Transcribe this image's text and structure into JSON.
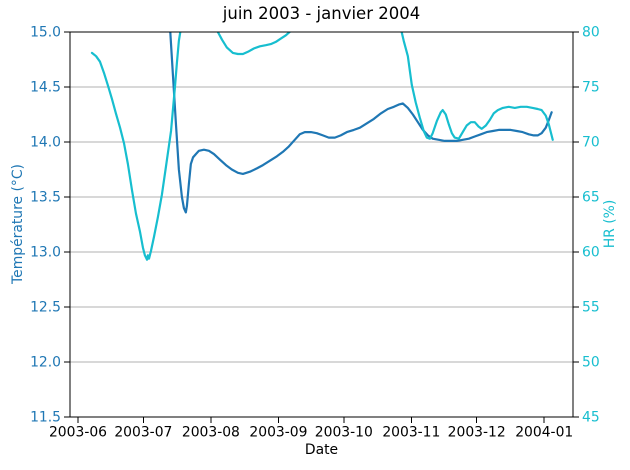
{
  "figure": {
    "background": "#ffffff"
  },
  "chart_data": {
    "type": "line",
    "title": "juin 2003 - janvier 2004",
    "xlabel": "Date",
    "grid": true,
    "grid_color": "#b0b0b0",
    "axis_color": "#000000",
    "x_axis": {
      "unit": "days since 2003-06-01",
      "range_days": [
        -3.67,
        227.2
      ],
      "tick_days": [
        0,
        30,
        61,
        92,
        122,
        153,
        183,
        214
      ],
      "tick_labels": [
        "2003-06",
        "2003-07",
        "2003-08",
        "2003-09",
        "2003-10",
        "2003-11",
        "2003-12",
        "2004-01"
      ]
    },
    "left_axis": {
      "label": "Température (°C)",
      "color": "#1f77b4",
      "range": [
        11.5,
        15.0
      ],
      "ticks": [
        11.5,
        12.0,
        12.5,
        13.0,
        13.5,
        14.0,
        14.5,
        15.0
      ],
      "tick_labels": [
        "11.5",
        "12.0",
        "12.5",
        "13.0",
        "13.5",
        "14.0",
        "14.5",
        "15.0"
      ]
    },
    "right_axis": {
      "label": "HR (%)",
      "color": "#17becf",
      "range": [
        45,
        80
      ],
      "ticks": [
        45,
        50,
        55,
        60,
        65,
        70,
        75,
        80
      ],
      "tick_labels": [
        "45",
        "50",
        "55",
        "60",
        "65",
        "70",
        "75",
        "80"
      ]
    },
    "series": [
      {
        "name": "Température",
        "axis": "left",
        "color": "#1f77b4",
        "line_width": 2.2,
        "note": "values above 15.0 are clipped by the axis (estimated)",
        "points": [
          [
            40.4,
            15.8
          ],
          [
            41.3,
            15.35
          ],
          [
            42.2,
            15.05
          ],
          [
            43.6,
            14.6
          ],
          [
            45.0,
            14.15
          ],
          [
            46.3,
            13.75
          ],
          [
            47.7,
            13.5
          ],
          [
            48.6,
            13.4
          ],
          [
            49.5,
            13.36
          ],
          [
            50.0,
            13.42
          ],
          [
            50.9,
            13.62
          ],
          [
            51.8,
            13.8
          ],
          [
            52.8,
            13.86
          ],
          [
            54.1,
            13.89
          ],
          [
            55.5,
            13.92
          ],
          [
            57.8,
            13.93
          ],
          [
            60.1,
            13.92
          ],
          [
            62.4,
            13.89
          ],
          [
            65.1,
            13.84
          ],
          [
            67.9,
            13.79
          ],
          [
            70.6,
            13.75
          ],
          [
            73.4,
            13.72
          ],
          [
            75.7,
            13.71
          ],
          [
            78.9,
            13.73
          ],
          [
            82.1,
            13.76
          ],
          [
            84.9,
            13.79
          ],
          [
            88.1,
            13.83
          ],
          [
            91.3,
            13.87
          ],
          [
            94.0,
            13.91
          ],
          [
            96.8,
            13.96
          ],
          [
            99.5,
            14.02
          ],
          [
            101.8,
            14.07
          ],
          [
            104.1,
            14.09
          ],
          [
            106.9,
            14.09
          ],
          [
            109.6,
            14.08
          ],
          [
            112.4,
            14.06
          ],
          [
            115.1,
            14.04
          ],
          [
            117.9,
            14.04
          ],
          [
            120.6,
            14.06
          ],
          [
            123.4,
            14.09
          ],
          [
            126.6,
            14.11
          ],
          [
            129.4,
            14.13
          ],
          [
            132.6,
            14.17
          ],
          [
            135.8,
            14.21
          ],
          [
            139.0,
            14.26
          ],
          [
            142.2,
            14.3
          ],
          [
            145.0,
            14.32
          ],
          [
            147.2,
            14.34
          ],
          [
            149.1,
            14.35
          ],
          [
            151.4,
            14.31
          ],
          [
            153.7,
            14.25
          ],
          [
            156.0,
            14.18
          ],
          [
            158.3,
            14.11
          ],
          [
            160.6,
            14.06
          ],
          [
            162.8,
            14.03
          ],
          [
            165.6,
            14.02
          ],
          [
            168.3,
            14.01
          ],
          [
            171.1,
            14.01
          ],
          [
            173.9,
            14.01
          ],
          [
            176.6,
            14.02
          ],
          [
            179.4,
            14.03
          ],
          [
            182.1,
            14.05
          ],
          [
            184.9,
            14.07
          ],
          [
            187.6,
            14.09
          ],
          [
            190.4,
            14.1
          ],
          [
            193.1,
            14.11
          ],
          [
            195.9,
            14.11
          ],
          [
            198.6,
            14.11
          ],
          [
            201.4,
            14.1
          ],
          [
            204.1,
            14.09
          ],
          [
            206.9,
            14.07
          ],
          [
            209.2,
            14.06
          ],
          [
            211.0,
            14.06
          ],
          [
            212.8,
            14.08
          ],
          [
            214.7,
            14.13
          ],
          [
            216.1,
            14.2
          ],
          [
            217.4,
            14.27
          ]
        ]
      },
      {
        "name": "HR",
        "axis": "right",
        "color": "#17becf",
        "line_width": 2.2,
        "note": "values above 80 are clipped by the axis (estimated)",
        "points": [
          [
            6.4,
            78.1
          ],
          [
            8.3,
            77.8
          ],
          [
            10.1,
            77.3
          ],
          [
            11.9,
            76.3
          ],
          [
            13.8,
            75.1
          ],
          [
            15.6,
            73.9
          ],
          [
            17.4,
            72.6
          ],
          [
            19.3,
            71.3
          ],
          [
            21.1,
            69.9
          ],
          [
            22.9,
            68.0
          ],
          [
            24.8,
            65.6
          ],
          [
            26.6,
            63.5
          ],
          [
            28.4,
            61.9
          ],
          [
            29.8,
            60.4
          ],
          [
            30.7,
            59.7
          ],
          [
            31.7,
            59.3
          ],
          [
            32.1,
            59.7
          ],
          [
            32.6,
            59.4
          ],
          [
            33.5,
            60.1
          ],
          [
            34.9,
            61.4
          ],
          [
            36.7,
            63.2
          ],
          [
            38.5,
            65.2
          ],
          [
            40.4,
            67.8
          ],
          [
            41.7,
            69.6
          ],
          [
            42.7,
            71.0
          ],
          [
            43.6,
            73.0
          ],
          [
            44.5,
            75.0
          ],
          [
            45.4,
            77.2
          ],
          [
            46.3,
            79.2
          ],
          [
            47.2,
            80.3
          ],
          [
            48.6,
            82.2
          ],
          [
            50.9,
            84.0
          ],
          [
            54.1,
            85.0
          ],
          [
            57.8,
            84.3
          ],
          [
            60.6,
            82.6
          ],
          [
            62.4,
            81.2
          ],
          [
            64.2,
            80.0
          ],
          [
            66.1,
            79.3
          ],
          [
            68.3,
            78.6
          ],
          [
            71.1,
            78.1
          ],
          [
            73.4,
            78.0
          ],
          [
            75.7,
            78.0
          ],
          [
            78.0,
            78.2
          ],
          [
            80.7,
            78.5
          ],
          [
            83.5,
            78.7
          ],
          [
            86.2,
            78.8
          ],
          [
            88.5,
            78.9
          ],
          [
            90.8,
            79.1
          ],
          [
            93.1,
            79.4
          ],
          [
            95.4,
            79.7
          ],
          [
            97.7,
            80.1
          ],
          [
            101.8,
            81.4
          ],
          [
            111.0,
            83.2
          ],
          [
            122.5,
            84.3
          ],
          [
            131.7,
            84.4
          ],
          [
            140.8,
            83.0
          ],
          [
            145.9,
            81.3
          ],
          [
            148.2,
            80.3
          ],
          [
            149.5,
            79.2
          ],
          [
            151.4,
            77.8
          ],
          [
            153.2,
            75.2
          ],
          [
            155.0,
            73.6
          ],
          [
            156.9,
            72.2
          ],
          [
            158.7,
            71.0
          ],
          [
            160.1,
            70.4
          ],
          [
            161.5,
            70.3
          ],
          [
            162.8,
            70.8
          ],
          [
            164.7,
            71.9
          ],
          [
            166.5,
            72.7
          ],
          [
            167.4,
            72.9
          ],
          [
            168.8,
            72.5
          ],
          [
            170.2,
            71.6
          ],
          [
            171.6,
            70.8
          ],
          [
            172.9,
            70.4
          ],
          [
            174.8,
            70.3
          ],
          [
            176.6,
            70.9
          ],
          [
            178.4,
            71.5
          ],
          [
            180.3,
            71.8
          ],
          [
            182.1,
            71.8
          ],
          [
            183.9,
            71.4
          ],
          [
            185.3,
            71.2
          ],
          [
            187.2,
            71.5
          ],
          [
            189.0,
            72.0
          ],
          [
            190.8,
            72.6
          ],
          [
            192.7,
            72.9
          ],
          [
            195.0,
            73.1
          ],
          [
            197.7,
            73.2
          ],
          [
            200.5,
            73.1
          ],
          [
            203.2,
            73.2
          ],
          [
            206.0,
            73.2
          ],
          [
            208.7,
            73.1
          ],
          [
            211.0,
            73.0
          ],
          [
            212.8,
            72.9
          ],
          [
            214.7,
            72.4
          ],
          [
            216.1,
            71.6
          ],
          [
            217.0,
            70.9
          ],
          [
            217.9,
            70.2
          ]
        ]
      }
    ]
  }
}
